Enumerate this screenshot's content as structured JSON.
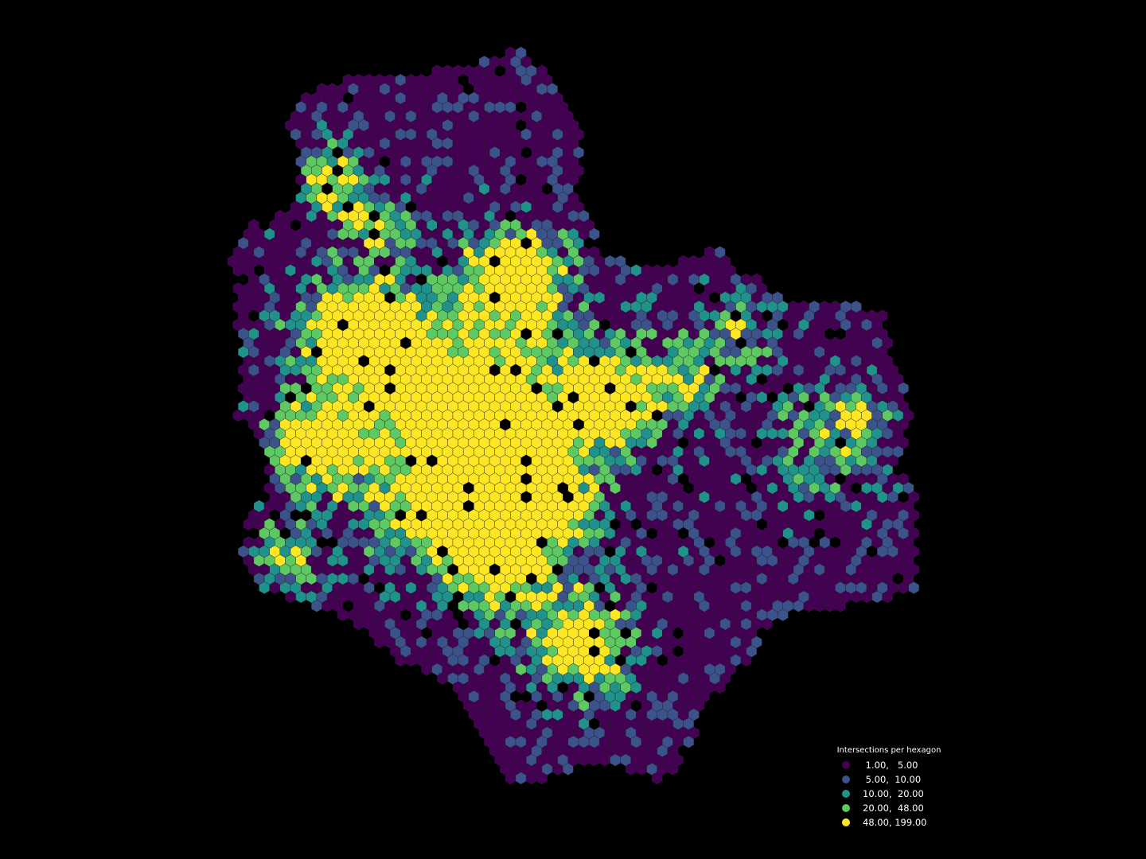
{
  "map": {
    "type": "hexbin",
    "background": "#000000",
    "hex_edge_color": "#222222"
  },
  "legend": {
    "title": "Intersections per hexagon",
    "classes": [
      {
        "label": " 1.00,   5.00",
        "color": "#440154",
        "range": [
          1,
          5
        ]
      },
      {
        "label": " 5.00,  10.00",
        "color": "#3b528b",
        "range": [
          5,
          10
        ]
      },
      {
        "label": "10.00,  20.00",
        "color": "#21918c",
        "range": [
          10,
          20
        ]
      },
      {
        "label": "20.00,  48.00",
        "color": "#5ec962",
        "range": [
          20,
          48
        ]
      },
      {
        "label": "48.00, 199.00",
        "color": "#fde725",
        "range": [
          48,
          199
        ]
      }
    ]
  }
}
